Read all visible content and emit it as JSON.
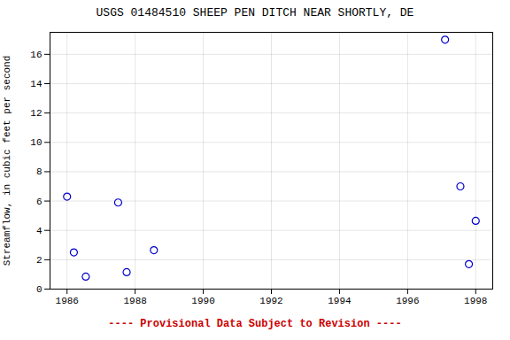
{
  "chart_data": {
    "type": "scatter",
    "title": "USGS 01484510 SHEEP PEN DITCH NEAR SHORTLY, DE",
    "ylabel": "Streamflow, in cubic feet per second",
    "x": [
      1986.0,
      1986.2,
      1986.55,
      1987.5,
      1987.75,
      1988.55,
      1997.1,
      1997.55,
      1997.8,
      1998.0
    ],
    "values": [
      6.3,
      2.5,
      0.85,
      5.9,
      1.15,
      2.65,
      17.0,
      7.0,
      1.7,
      4.65
    ],
    "color": "#0000cc",
    "marker": "circle",
    "xlim": [
      1985.5,
      1998.5
    ],
    "ylim": [
      0,
      17.5
    ],
    "xticks": [
      1986,
      1988,
      1990,
      1992,
      1994,
      1996,
      1998
    ],
    "yticks": [
      0,
      2,
      4,
      6,
      8,
      10,
      12,
      14,
      16
    ],
    "grid": true,
    "annotations": [
      {
        "text": "---- Provisional Data Subject to Revision ----",
        "color": "#cc0000"
      }
    ]
  }
}
